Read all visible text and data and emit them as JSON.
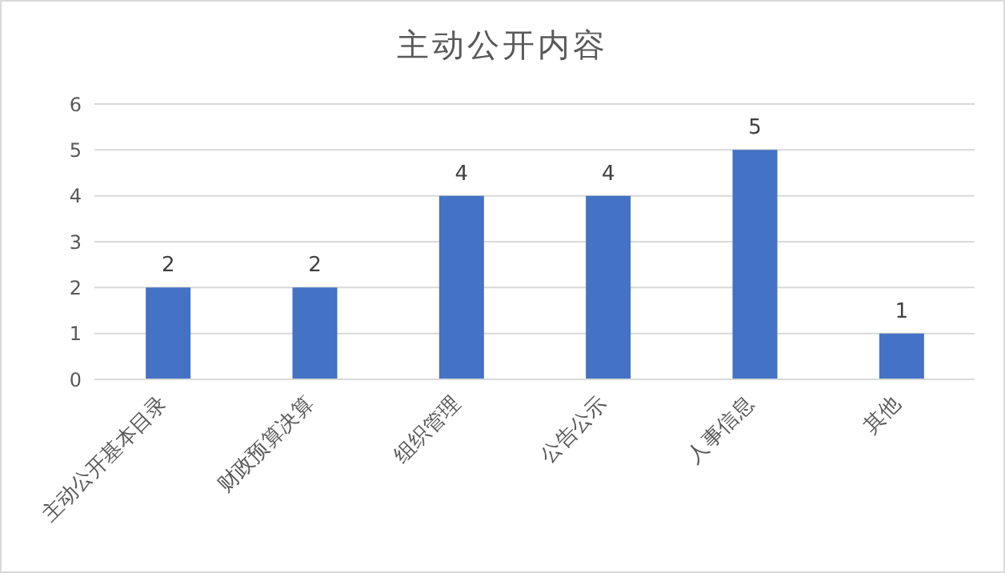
{
  "chart_data": {
    "type": "bar",
    "title": "主动公开内容",
    "categories": [
      "主动公开基本目录",
      "财政预算决算",
      "组织管理",
      "公告公示",
      "人事信息",
      "其他"
    ],
    "values": [
      2,
      2,
      4,
      4,
      5,
      1
    ],
    "color": "#4472c4",
    "ylim": [
      0,
      6
    ],
    "yticks": [
      0,
      1,
      2,
      3,
      4,
      5,
      6
    ],
    "grid": "y",
    "data_labels": true
  }
}
